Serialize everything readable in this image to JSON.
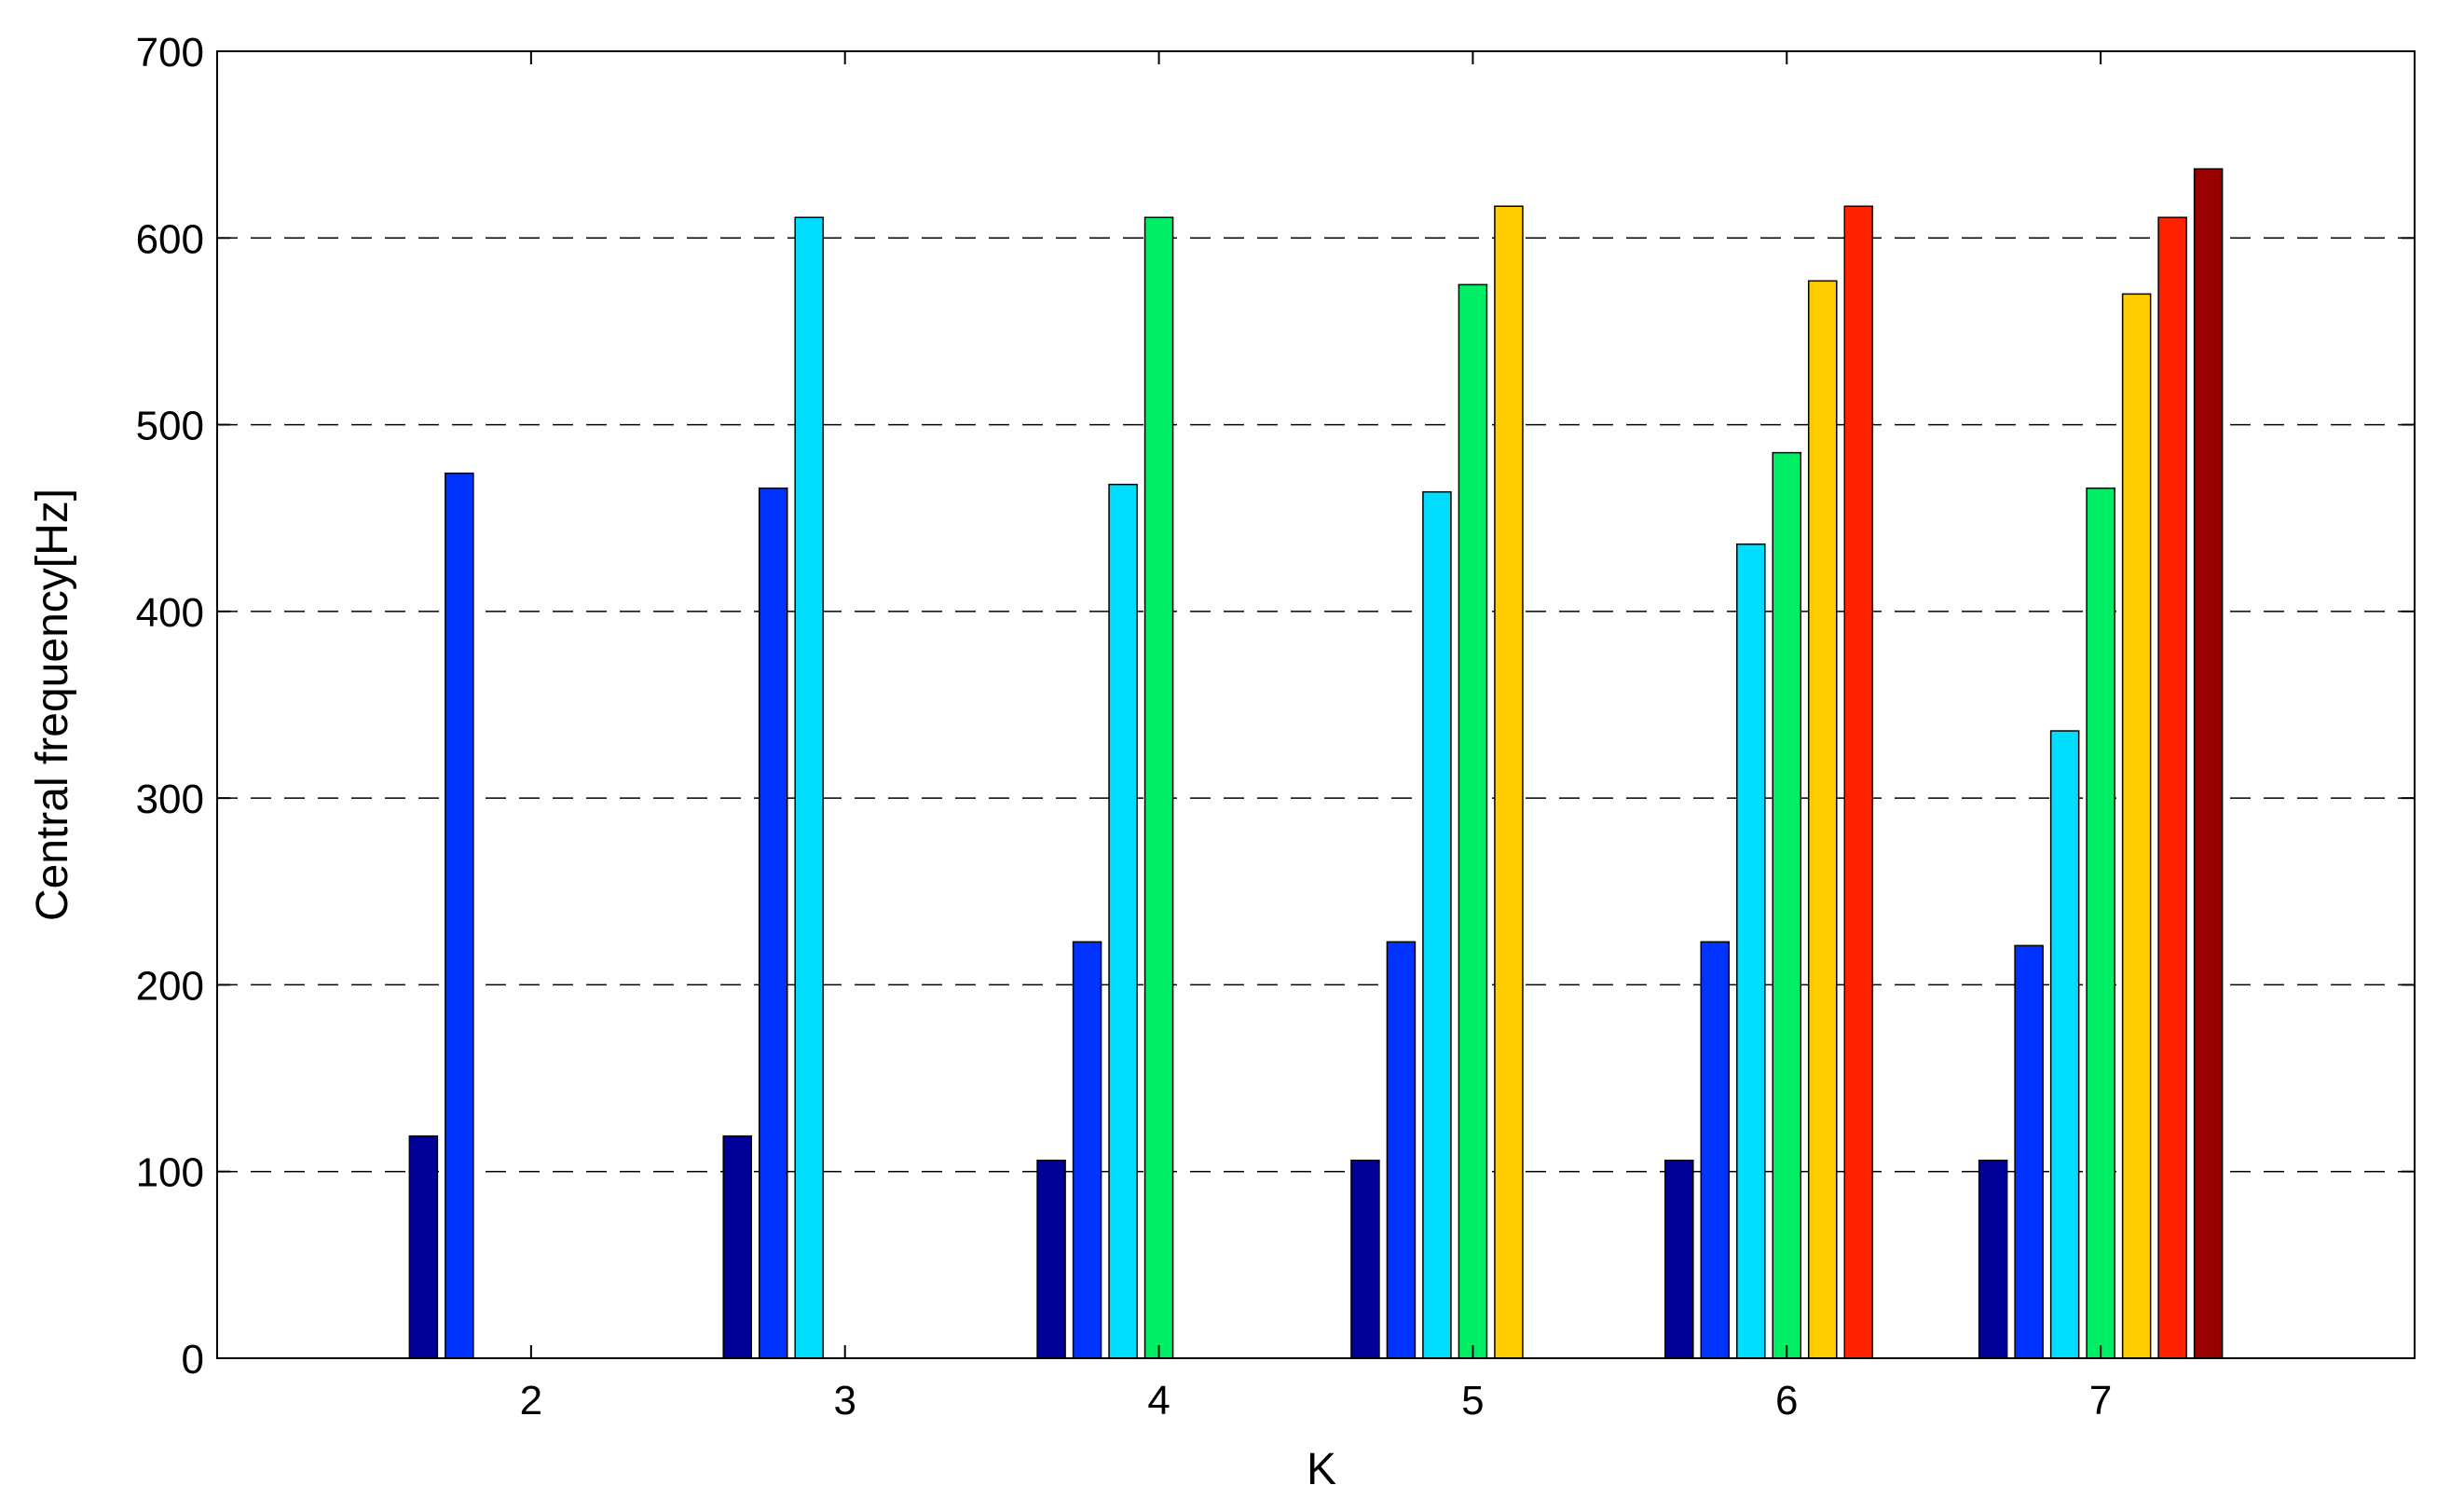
{
  "chart_data": {
    "type": "bar",
    "title": "",
    "xlabel": "K",
    "ylabel": "Central frequency[Hz]",
    "xlim": [
      1,
      8
    ],
    "ylim": [
      0,
      700
    ],
    "yticks": [
      0,
      100,
      200,
      300,
      400,
      500,
      600,
      700
    ],
    "categories": [
      "2",
      "3",
      "4",
      "5",
      "6",
      "7"
    ],
    "grid": "horizontal-dashed",
    "series": [
      {
        "color": "#000099",
        "values": [
          119,
          119,
          106,
          106,
          106,
          106
        ]
      },
      {
        "color": "#0033ff",
        "values": [
          474,
          466,
          223,
          223,
          223,
          221
        ]
      },
      {
        "color": "#00ddff",
        "values": [
          null,
          611,
          468,
          464,
          436,
          336
        ]
      },
      {
        "color": "#00ee66",
        "values": [
          null,
          null,
          611,
          575,
          485,
          466
        ]
      },
      {
        "color": "#ffcc00",
        "values": [
          null,
          null,
          null,
          617,
          577,
          570
        ]
      },
      {
        "color": "#ff2200",
        "values": [
          null,
          null,
          null,
          null,
          617,
          611
        ]
      },
      {
        "color": "#990000",
        "values": [
          null,
          null,
          null,
          null,
          null,
          637
        ]
      }
    ]
  }
}
